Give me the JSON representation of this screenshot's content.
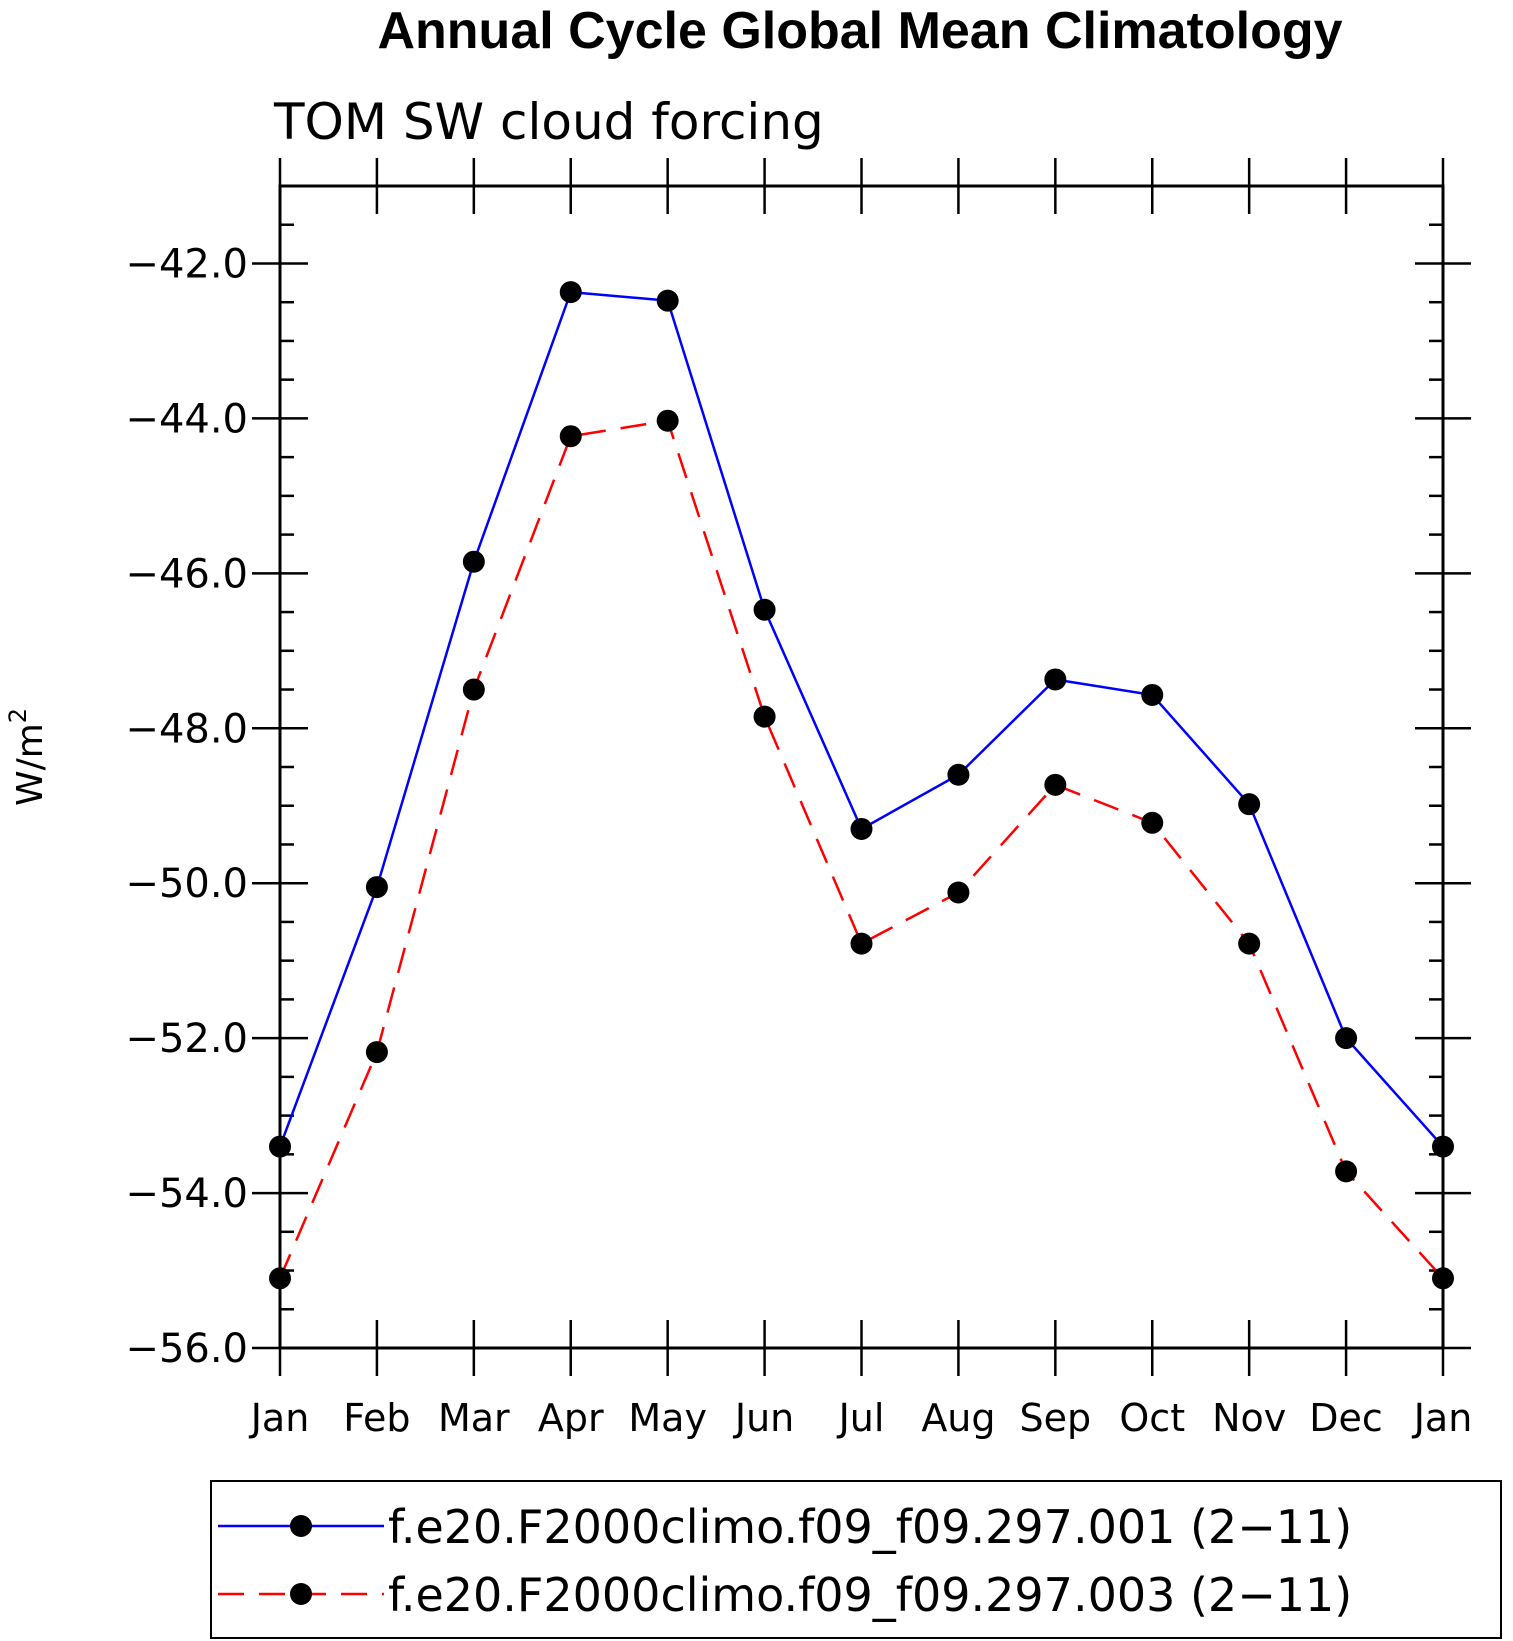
{
  "chart_data": {
    "type": "line",
    "title": "Annual Cycle Global Mean Climatology",
    "subtitle": "TOM SW cloud forcing",
    "ylabel": "W/m",
    "ylabel_sup": "2",
    "xlabel": "",
    "ylim": [
      -56.0,
      -41.0
    ],
    "yticks": [
      "−42.0",
      "−44.0",
      "−46.0",
      "−48.0",
      "−50.0",
      "−52.0",
      "−54.0",
      "−56.0"
    ],
    "ytick_values": [
      -42,
      -44,
      -46,
      -48,
      -50,
      -52,
      -54,
      -56
    ],
    "categories": [
      "Jan",
      "Feb",
      "Mar",
      "Apr",
      "May",
      "Jun",
      "Jul",
      "Aug",
      "Sep",
      "Oct",
      "Nov",
      "Dec",
      "Jan"
    ],
    "series": [
      {
        "name": "f.e20.F2000climo.f09_f09.297.001 (2−11)",
        "color": "#0000ff",
        "dash": "solid",
        "values": [
          -53.4,
          -50.05,
          -45.85,
          -42.37,
          -42.48,
          -46.47,
          -49.3,
          -48.6,
          -47.37,
          -47.57,
          -48.98,
          -52.0,
          -53.4
        ]
      },
      {
        "name": "f.e20.F2000climo.f09_f09.297.003 (2−11)",
        "color": "#ff0000",
        "dash": "dashed",
        "values": [
          -55.1,
          -52.18,
          -47.5,
          -44.23,
          -44.03,
          -47.85,
          -50.78,
          -50.12,
          -48.73,
          -49.22,
          -50.78,
          -53.72,
          -55.1
        ]
      }
    ],
    "marker_color": "#000000",
    "legend_position": "bottom"
  }
}
